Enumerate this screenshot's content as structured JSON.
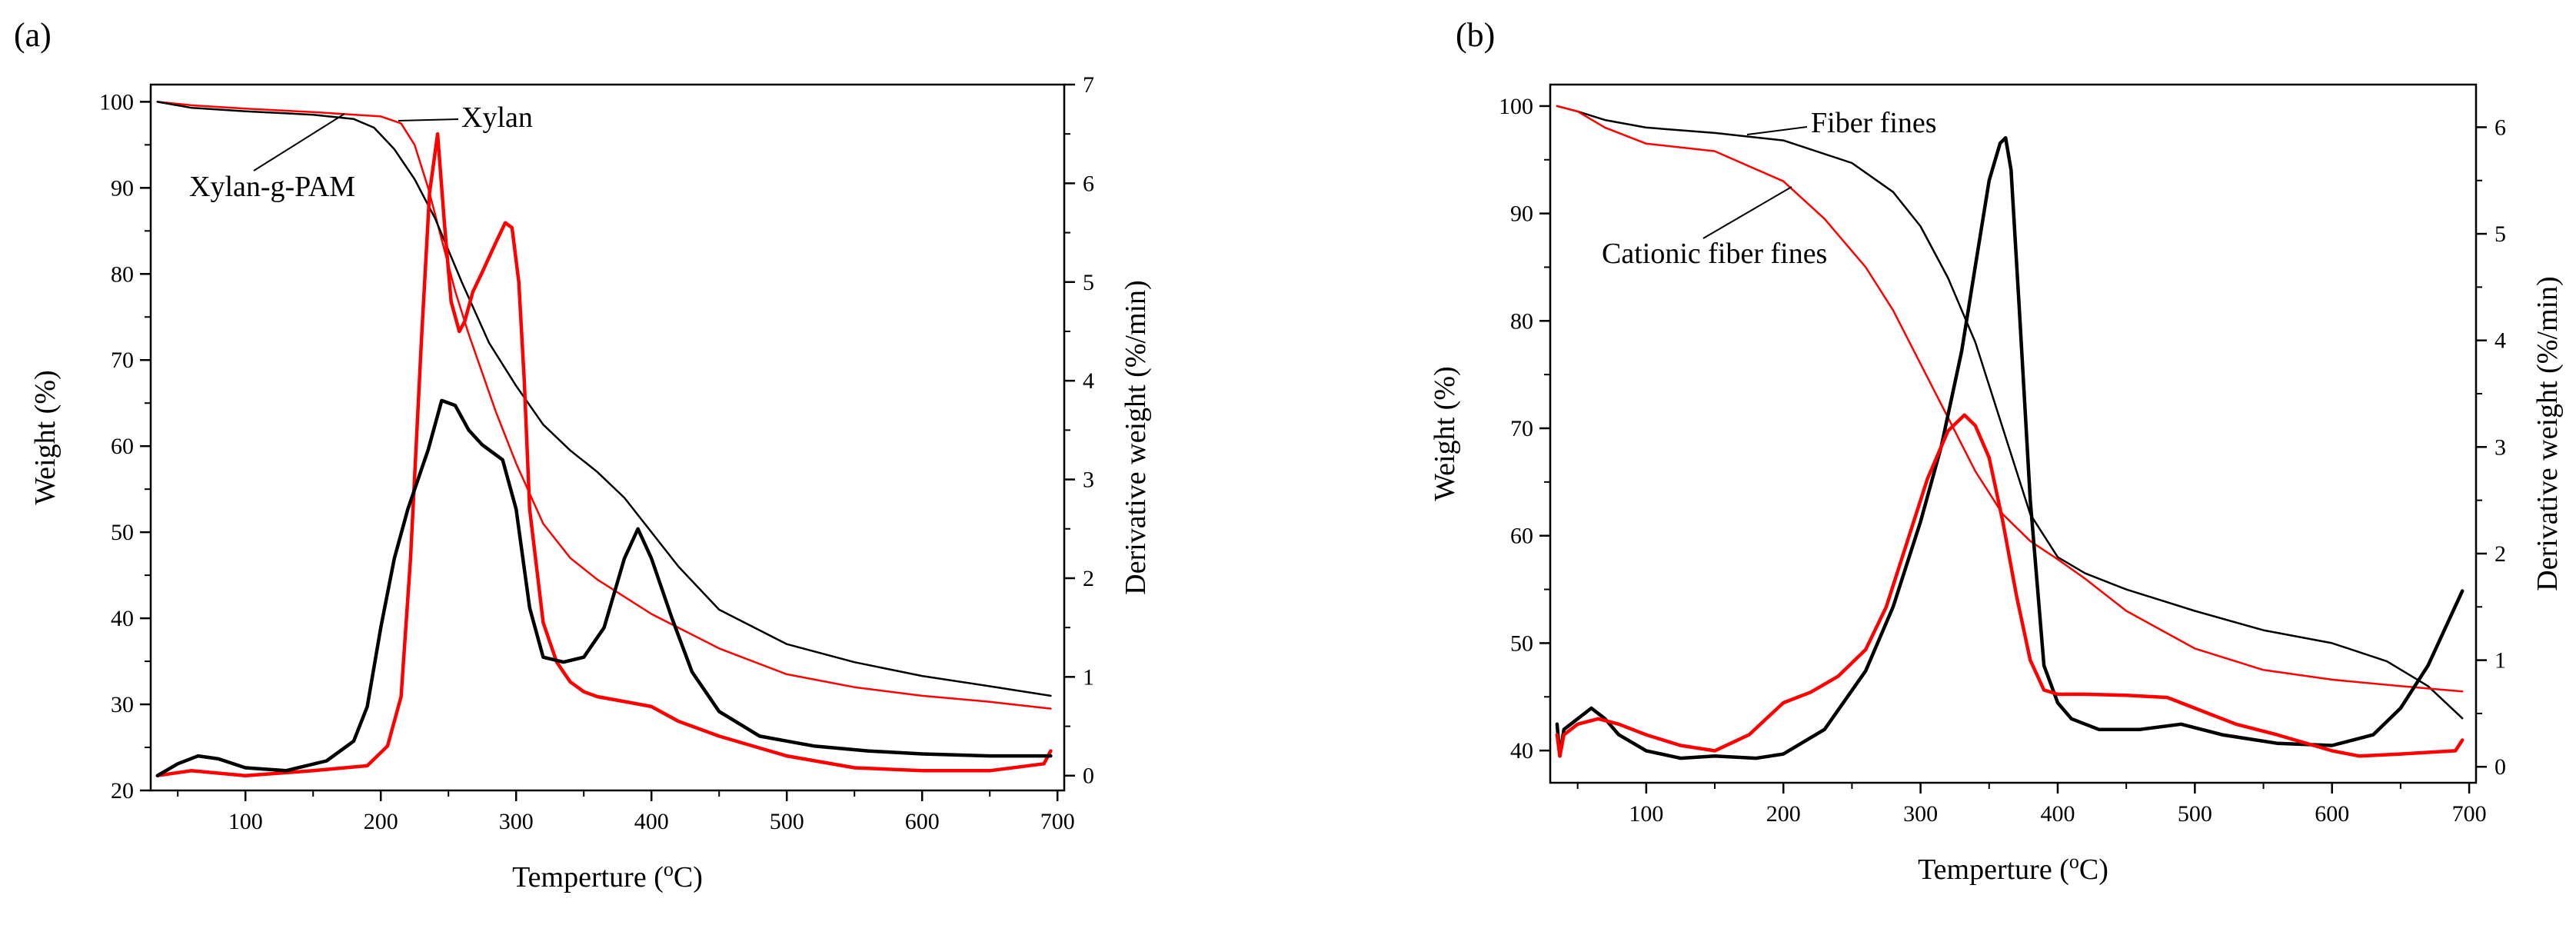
{
  "colors": {
    "black": "#000000",
    "red": "#ff0000",
    "background": "#ffffff"
  },
  "chart_data": [
    {
      "panel_label": "(a)",
      "type": "line",
      "xlabel": "Temperture (",
      "xlabel_sup": "o",
      "xlabel_unit": "C)",
      "ylabel": "Weight (%)",
      "y2label": "Derivative weight (%/min)",
      "xlim": [
        30,
        705
      ],
      "ylim": [
        20,
        102
      ],
      "y2lim": [
        -0.15,
        7
      ],
      "xticks": [
        "100",
        "200",
        "300",
        "400",
        "500",
        "600",
        "700"
      ],
      "yticks": [
        "20",
        "30",
        "40",
        "50",
        "60",
        "70",
        "80",
        "90",
        "100"
      ],
      "y2ticks": [
        "0",
        "1",
        "2",
        "3",
        "4",
        "5",
        "6",
        "7"
      ],
      "annotations": [
        {
          "text": "Xylan",
          "points_to_series": "Xylan weight"
        },
        {
          "text": "Xylan-g-PAM",
          "points_to_series": "Xylan-g-PAM weight"
        }
      ],
      "series": [
        {
          "name": "Xylan weight",
          "axis": "left",
          "color": "#ff0000",
          "x": [
            35,
            60,
            100,
            150,
            200,
            215,
            225,
            235,
            245,
            255,
            265,
            275,
            285,
            300,
            320,
            340,
            360,
            400,
            450,
            500,
            550,
            600,
            650,
            695
          ],
          "y": [
            100,
            99.6,
            99.2,
            98.8,
            98.3,
            97.5,
            95,
            90,
            84,
            78,
            73,
            68.5,
            64,
            58,
            51,
            47,
            44.5,
            40.5,
            36.5,
            33.5,
            32,
            31,
            30.3,
            29.5
          ]
        },
        {
          "name": "Xylan-g-PAM weight",
          "axis": "left",
          "color": "#000000",
          "x": [
            35,
            60,
            100,
            150,
            180,
            195,
            210,
            225,
            240,
            260,
            280,
            300,
            320,
            340,
            360,
            380,
            400,
            420,
            450,
            500,
            550,
            600,
            650,
            695
          ],
          "y": [
            100,
            99.3,
            98.9,
            98.5,
            98,
            97,
            94.5,
            91,
            86.5,
            79,
            72,
            67,
            62.5,
            59.5,
            57,
            54,
            50,
            46,
            41,
            37,
            34.9,
            33.3,
            32.1,
            31
          ]
        },
        {
          "name": "Xylan derivative",
          "axis": "right",
          "color": "#ff0000",
          "x": [
            35,
            60,
            100,
            150,
            190,
            205,
            215,
            222,
            230,
            236,
            242,
            247,
            252,
            258,
            262,
            268,
            275,
            285,
            292,
            297,
            302,
            306,
            310,
            320,
            330,
            340,
            350,
            360,
            380,
            400,
            420,
            450,
            500,
            550,
            600,
            650,
            690,
            695
          ],
          "y": [
            0.0,
            0.05,
            0.0,
            0.05,
            0.1,
            0.3,
            0.8,
            2.2,
            4.4,
            5.9,
            6.5,
            5.6,
            4.8,
            4.5,
            4.6,
            4.9,
            5.1,
            5.4,
            5.6,
            5.55,
            5.0,
            4.0,
            2.7,
            1.55,
            1.15,
            0.95,
            0.85,
            0.8,
            0.75,
            0.7,
            0.55,
            0.4,
            0.2,
            0.08,
            0.05,
            0.05,
            0.12,
            0.25
          ]
        },
        {
          "name": "Xylan-g-PAM derivative",
          "axis": "right",
          "color": "#000000",
          "x": [
            35,
            50,
            65,
            80,
            100,
            130,
            160,
            180,
            190,
            200,
            210,
            220,
            235,
            245,
            255,
            265,
            275,
            290,
            300,
            310,
            320,
            335,
            350,
            365,
            380,
            390,
            400,
            415,
            430,
            450,
            480,
            520,
            560,
            600,
            650,
            695
          ],
          "y": [
            0.0,
            0.12,
            0.2,
            0.17,
            0.08,
            0.05,
            0.15,
            0.35,
            0.7,
            1.5,
            2.2,
            2.7,
            3.3,
            3.8,
            3.75,
            3.5,
            3.35,
            3.2,
            2.7,
            1.7,
            1.2,
            1.15,
            1.2,
            1.5,
            2.2,
            2.5,
            2.2,
            1.6,
            1.05,
            0.65,
            0.4,
            0.3,
            0.25,
            0.22,
            0.2,
            0.2
          ]
        }
      ]
    },
    {
      "panel_label": "(b)",
      "type": "line",
      "xlabel": "Temperture (",
      "xlabel_sup": "o",
      "xlabel_unit": "C)",
      "ylabel": "Weight (%)",
      "y2label": "Derivative weight (%/min)",
      "xlim": [
        30,
        705
      ],
      "ylim": [
        37,
        102
      ],
      "y2lim": [
        -0.15,
        6.4
      ],
      "xticks": [
        "100",
        "200",
        "300",
        "400",
        "500",
        "600",
        "700"
      ],
      "yticks": [
        "40",
        "50",
        "60",
        "70",
        "80",
        "90",
        "100"
      ],
      "y2ticks": [
        "0",
        "1",
        "2",
        "3",
        "4",
        "5",
        "6"
      ],
      "annotations": [
        {
          "text": "Fiber fines",
          "points_to_series": "Fiber fines weight"
        },
        {
          "text": "Cationic fiber fines",
          "points_to_series": "Cationic fiber fines weight"
        }
      ],
      "series": [
        {
          "name": "Fiber fines weight",
          "axis": "left",
          "color": "#000000",
          "x": [
            35,
            50,
            70,
            100,
            150,
            200,
            250,
            280,
            300,
            320,
            340,
            360,
            380,
            400,
            420,
            450,
            500,
            550,
            600,
            640,
            670,
            695
          ],
          "y": [
            100,
            99.5,
            98.7,
            98,
            97.5,
            96.8,
            94.7,
            92,
            88.8,
            84,
            78,
            70,
            62,
            58,
            56.5,
            55,
            53,
            51.2,
            50,
            48.3,
            46,
            43
          ]
        },
        {
          "name": "Cationic fiber fines weight",
          "axis": "left",
          "color": "#ff0000",
          "x": [
            35,
            50,
            70,
            100,
            150,
            200,
            230,
            260,
            280,
            300,
            320,
            340,
            360,
            380,
            400,
            420,
            450,
            500,
            550,
            600,
            650,
            695
          ],
          "y": [
            100,
            99.5,
            98,
            96.5,
            95.8,
            93,
            89.5,
            85,
            81,
            76,
            71,
            66,
            62,
            59.5,
            57.8,
            56,
            53,
            49.5,
            47.5,
            46.6,
            46,
            45.5
          ]
        },
        {
          "name": "Fiber fines derivative",
          "axis": "right",
          "color": "#000000",
          "x": [
            35,
            37,
            40,
            50,
            60,
            70,
            80,
            100,
            125,
            150,
            180,
            200,
            230,
            260,
            280,
            300,
            315,
            330,
            340,
            350,
            358,
            362,
            366,
            372,
            380,
            390,
            400,
            410,
            430,
            460,
            490,
            520,
            560,
            600,
            630,
            650,
            670,
            695
          ],
          "y": [
            0.4,
            0.1,
            0.35,
            0.45,
            0.55,
            0.45,
            0.3,
            0.15,
            0.08,
            0.1,
            0.08,
            0.12,
            0.35,
            0.9,
            1.5,
            2.3,
            3.0,
            3.9,
            4.7,
            5.5,
            5.85,
            5.9,
            5.6,
            4.3,
            2.5,
            0.95,
            0.6,
            0.45,
            0.35,
            0.35,
            0.4,
            0.3,
            0.22,
            0.2,
            0.3,
            0.55,
            0.95,
            1.65
          ]
        },
        {
          "name": "Cationic fiber fines derivative",
          "axis": "right",
          "color": "#ff0000",
          "x": [
            35,
            37,
            40,
            50,
            65,
            80,
            100,
            125,
            150,
            175,
            200,
            220,
            240,
            260,
            275,
            290,
            305,
            320,
            332,
            340,
            350,
            360,
            370,
            380,
            390,
            400,
            420,
            450,
            480,
            500,
            530,
            560,
            600,
            620,
            650,
            690,
            695
          ],
          "y": [
            0.3,
            0.1,
            0.3,
            0.4,
            0.45,
            0.4,
            0.3,
            0.2,
            0.15,
            0.3,
            0.6,
            0.7,
            0.85,
            1.1,
            1.5,
            2.1,
            2.7,
            3.15,
            3.3,
            3.2,
            2.9,
            2.3,
            1.6,
            1.0,
            0.72,
            0.68,
            0.68,
            0.67,
            0.65,
            0.55,
            0.4,
            0.3,
            0.15,
            0.1,
            0.12,
            0.15,
            0.25
          ]
        }
      ]
    }
  ]
}
